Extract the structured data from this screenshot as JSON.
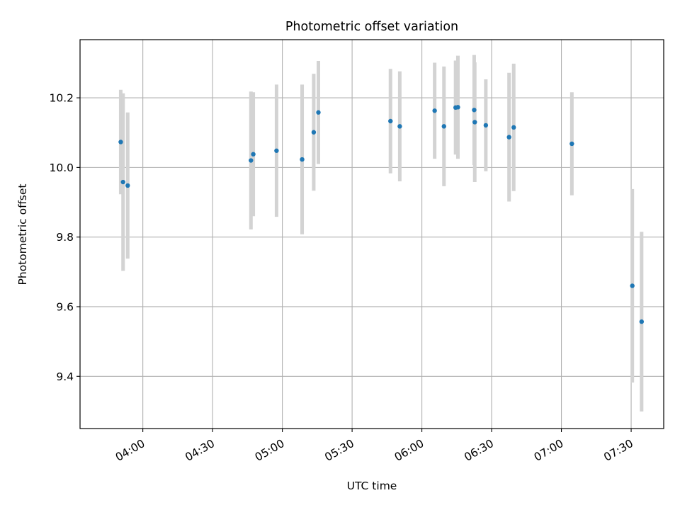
{
  "chart_data": {
    "type": "scatter",
    "title": "Photometric offset variation",
    "xlabel": "UTC time",
    "ylabel": "Photometric offset",
    "x_unit": "time (HH:MM UTC)",
    "xlim": [
      "03:33",
      "07:44"
    ],
    "ylim": [
      9.25,
      10.367
    ],
    "x_ticks": [
      "04:00",
      "04:30",
      "05:00",
      "05:30",
      "06:00",
      "06:30",
      "07:00",
      "07:30"
    ],
    "y_ticks": [
      "9.4",
      "9.6",
      "9.8",
      "10.0",
      "10.2"
    ],
    "grid": true,
    "colors": {
      "point": "#1f77b4",
      "errorbar": "#d3d3d3",
      "grid": "#b0b0b0"
    },
    "series": [
      {
        "points": [
          {
            "x": "03:50:30",
            "y": 10.073,
            "yerr": 0.15
          },
          {
            "x": "03:51:30",
            "y": 9.958,
            "yerr": 0.255
          },
          {
            "x": "03:53:30",
            "y": 9.948,
            "yerr": 0.21
          },
          {
            "x": "04:46:30",
            "y": 10.02,
            "yerr": 0.198
          },
          {
            "x": "04:47:30",
            "y": 10.038,
            "yerr": 0.178
          },
          {
            "x": "04:57:30",
            "y": 10.048,
            "yerr": 0.19
          },
          {
            "x": "05:08:30",
            "y": 10.023,
            "yerr": 0.215
          },
          {
            "x": "05:13:30",
            "y": 10.101,
            "yerr": 0.168
          },
          {
            "x": "05:15:30",
            "y": 10.158,
            "yerr": 0.148
          },
          {
            "x": "05:46:30",
            "y": 10.133,
            "yerr": 0.15
          },
          {
            "x": "05:50:30",
            "y": 10.118,
            "yerr": 0.158
          },
          {
            "x": "06:05:30",
            "y": 10.163,
            "yerr": 0.138
          },
          {
            "x": "06:09:30",
            "y": 10.118,
            "yerr": 0.172
          },
          {
            "x": "06:14:30",
            "y": 10.172,
            "yerr": 0.135
          },
          {
            "x": "06:15:30",
            "y": 10.173,
            "yerr": 0.148
          },
          {
            "x": "06:22:30",
            "y": 10.165,
            "yerr": 0.158
          },
          {
            "x": "06:22:45",
            "y": 10.13,
            "yerr": 0.172
          },
          {
            "x": "06:27:30",
            "y": 10.121,
            "yerr": 0.132
          },
          {
            "x": "06:37:30",
            "y": 10.087,
            "yerr": 0.185
          },
          {
            "x": "06:39:30",
            "y": 10.115,
            "yerr": 0.183
          },
          {
            "x": "07:04:30",
            "y": 10.068,
            "yerr": 0.148
          },
          {
            "x": "07:30:30",
            "y": 9.66,
            "yerr": 0.278
          },
          {
            "x": "07:34:30",
            "y": 9.557,
            "yerr": 0.258
          }
        ]
      }
    ]
  }
}
